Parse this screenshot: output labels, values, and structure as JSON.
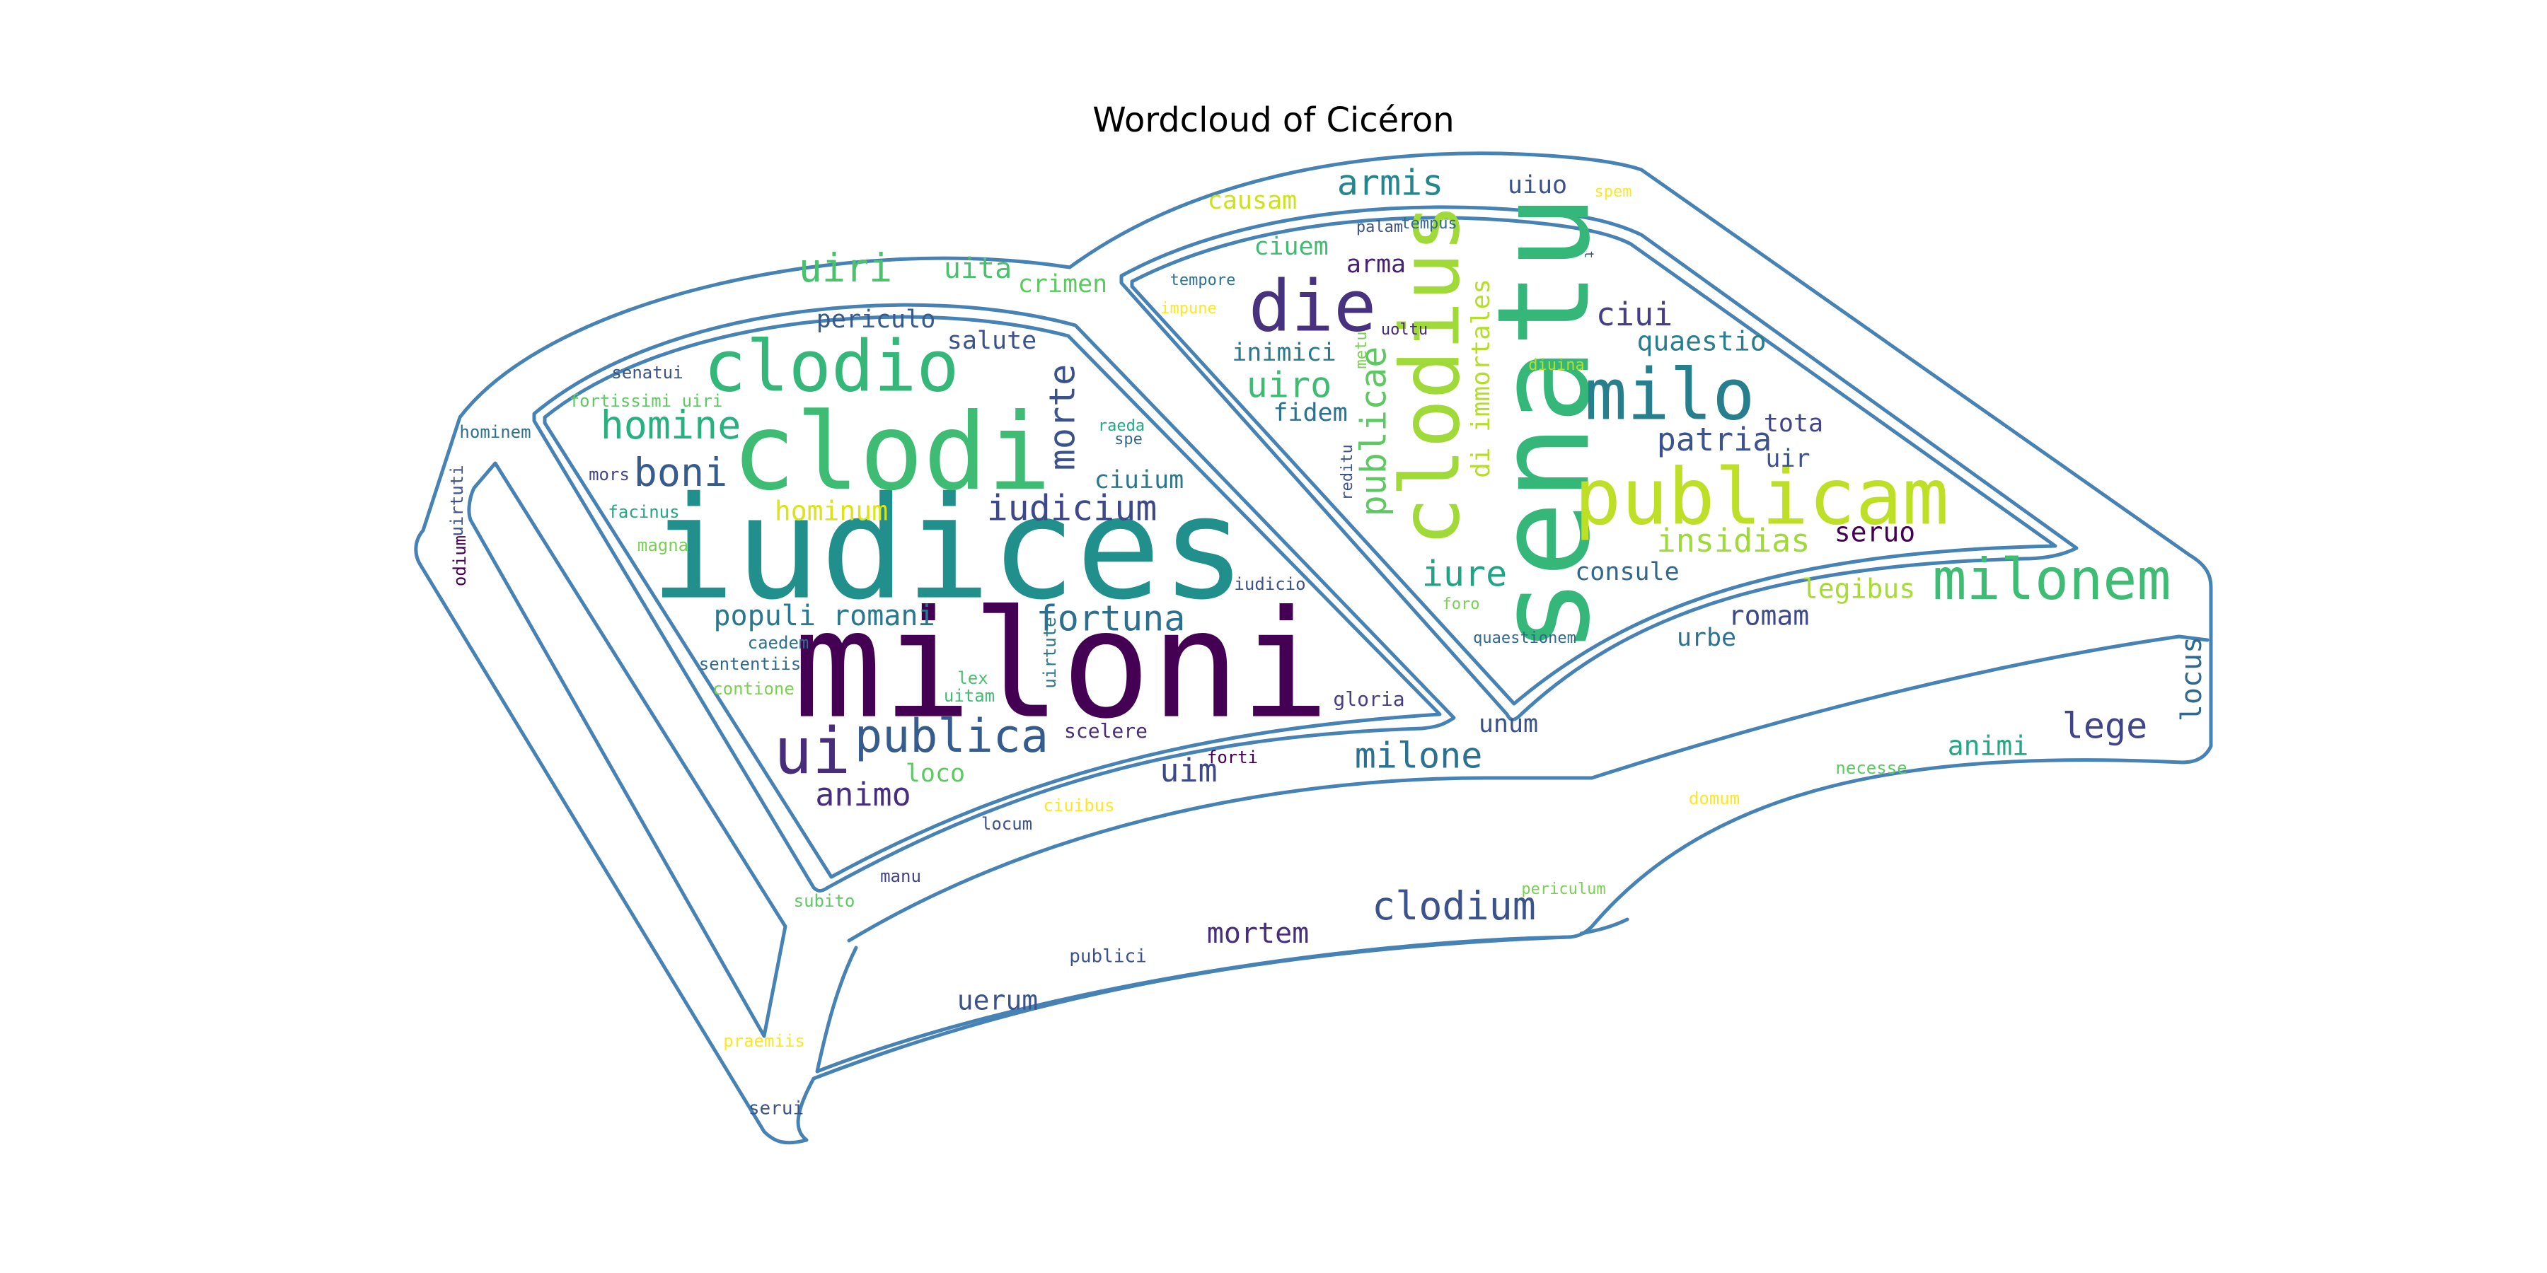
{
  "title": "Wordcloud of Cicéron",
  "outline_color": "#4682b4",
  "words": [
    {
      "text": "miloni",
      "color": "#440154"
    },
    {
      "text": "iudices",
      "color": "#21908d"
    },
    {
      "text": "senatu",
      "color": "#35b779"
    },
    {
      "text": "clodi",
      "color": "#3fbc73"
    },
    {
      "text": "publicam",
      "color": "#bddf26"
    },
    {
      "text": "clodius",
      "color": "#a0da39"
    },
    {
      "text": "clodio",
      "color": "#35b779"
    },
    {
      "text": "milo",
      "color": "#277f8e"
    },
    {
      "text": "die",
      "color": "#46327e"
    },
    {
      "text": "milonem",
      "color": "#3fbc73"
    },
    {
      "text": "publica",
      "color": "#365c8d"
    },
    {
      "text": "ui",
      "color": "#472d7b"
    },
    {
      "text": "fortuna",
      "color": "#2e6e8e"
    },
    {
      "text": "clodium",
      "color": "#3b528b"
    },
    {
      "text": "milone",
      "color": "#2c728e"
    },
    {
      "text": "boni",
      "color": "#365c8d"
    },
    {
      "text": "homine",
      "color": "#2ab07f"
    },
    {
      "text": "animo",
      "color": "#472f7d"
    },
    {
      "text": "morte",
      "color": "#3b528b"
    },
    {
      "text": "iudicium",
      "color": "#3e4989"
    },
    {
      "text": "uiri",
      "color": "#4ac16d"
    },
    {
      "text": "armis",
      "color": "#24868e"
    },
    {
      "text": "publicae",
      "color": "#5ec962"
    },
    {
      "text": "insidias",
      "color": "#a0da39"
    },
    {
      "text": "patria",
      "color": "#3b528b"
    },
    {
      "text": "iure",
      "color": "#20a486"
    },
    {
      "text": "lege",
      "color": "#414487"
    },
    {
      "text": "uim",
      "color": "#3e4989"
    },
    {
      "text": "populi romani",
      "color": "#2a788e"
    },
    {
      "text": "ciui",
      "color": "#433e85"
    },
    {
      "text": "uiro",
      "color": "#3fbc73"
    },
    {
      "text": "di immortales",
      "color": "#b5de2b"
    },
    {
      "text": "mortem",
      "color": "#472f7d"
    },
    {
      "text": "uerum",
      "color": "#3b528b"
    },
    {
      "text": "quaestio",
      "color": "#287d8e"
    },
    {
      "text": "seruo",
      "color": "#440154"
    },
    {
      "text": "consule",
      "color": "#31688e"
    },
    {
      "text": "romam",
      "color": "#3e4989"
    },
    {
      "text": "legibus",
      "color": "#a8db34"
    },
    {
      "text": "animi",
      "color": "#22a884"
    },
    {
      "text": "locus",
      "color": "#31688e"
    },
    {
      "text": "urbe",
      "color": "#2c728e"
    },
    {
      "text": "unum",
      "color": "#3b528b"
    },
    {
      "text": "hominum",
      "color": "#dde318"
    },
    {
      "text": "uita",
      "color": "#4ac16d"
    },
    {
      "text": "crimen",
      "color": "#5ec962"
    },
    {
      "text": "periculo",
      "color": "#38598c"
    },
    {
      "text": "salute",
      "color": "#3b528b"
    },
    {
      "text": "ciuium",
      "color": "#2a788e"
    },
    {
      "text": "loco",
      "color": "#5ec962"
    },
    {
      "text": "causam",
      "color": "#cde11d"
    },
    {
      "text": "uiuo",
      "color": "#3b528b"
    },
    {
      "text": "ciuem",
      "color": "#3fbc73"
    },
    {
      "text": "arma",
      "color": "#482374"
    },
    {
      "text": "inimici",
      "color": "#2a788e"
    },
    {
      "text": "fidem",
      "color": "#2c728e"
    },
    {
      "text": "tota",
      "color": "#414487"
    },
    {
      "text": "uir",
      "color": "#3b528b"
    },
    {
      "text": "spem",
      "color": "#fde725"
    },
    {
      "text": "tempus",
      "color": "#31688e"
    },
    {
      "text": "palam",
      "color": "#3b528b"
    },
    {
      "text": "t",
      "color": "#3b528b"
    },
    {
      "text": "tempore",
      "color": "#2c728e"
    },
    {
      "text": "impune",
      "color": "#fde725"
    },
    {
      "text": "uoltu",
      "color": "#482878"
    },
    {
      "text": "metu",
      "color": "#7ad151"
    },
    {
      "text": "diuina",
      "color": "#b5de2b"
    },
    {
      "text": "reditu",
      "color": "#3b528b"
    },
    {
      "text": "raeda",
      "color": "#22a884"
    },
    {
      "text": "spe",
      "color": "#31688e"
    },
    {
      "text": "iudicio",
      "color": "#3b528b"
    },
    {
      "text": "foro",
      "color": "#7ad151"
    },
    {
      "text": "quaestionem",
      "color": "#31688e"
    },
    {
      "text": "senatui",
      "color": "#3b528b"
    },
    {
      "text": "fortissimi uiri",
      "color": "#5ec962"
    },
    {
      "text": "hominem",
      "color": "#2c728e"
    },
    {
      "text": "uirtuti",
      "color": "#3b528b"
    },
    {
      "text": "odium",
      "color": "#440154"
    },
    {
      "text": "mors",
      "color": "#414487"
    },
    {
      "text": "facinus",
      "color": "#22a884"
    },
    {
      "text": "magna",
      "color": "#7ad151"
    },
    {
      "text": "caedem",
      "color": "#2c728e"
    },
    {
      "text": "sententiis",
      "color": "#31688e"
    },
    {
      "text": "contione",
      "color": "#7ad151"
    },
    {
      "text": "lex",
      "color": "#4ac16d"
    },
    {
      "text": "uitam",
      "color": "#3fbc73"
    },
    {
      "text": "uirtute",
      "color": "#2a788e"
    },
    {
      "text": "gloria",
      "color": "#433e85"
    },
    {
      "text": "scelere",
      "color": "#472d7b"
    },
    {
      "text": "forti",
      "color": "#440154"
    },
    {
      "text": "ciuibus",
      "color": "#fde725"
    },
    {
      "text": "locum",
      "color": "#3b528b"
    },
    {
      "text": "manu",
      "color": "#414487"
    },
    {
      "text": "subito",
      "color": "#5ec962"
    },
    {
      "text": "publici",
      "color": "#3b528b"
    },
    {
      "text": "praemiis",
      "color": "#fde725"
    },
    {
      "text": "serui",
      "color": "#3b528b"
    },
    {
      "text": "necesse",
      "color": "#5ec962"
    },
    {
      "text": "domum",
      "color": "#fde725"
    },
    {
      "text": "periculum",
      "color": "#7ad151"
    }
  ]
}
